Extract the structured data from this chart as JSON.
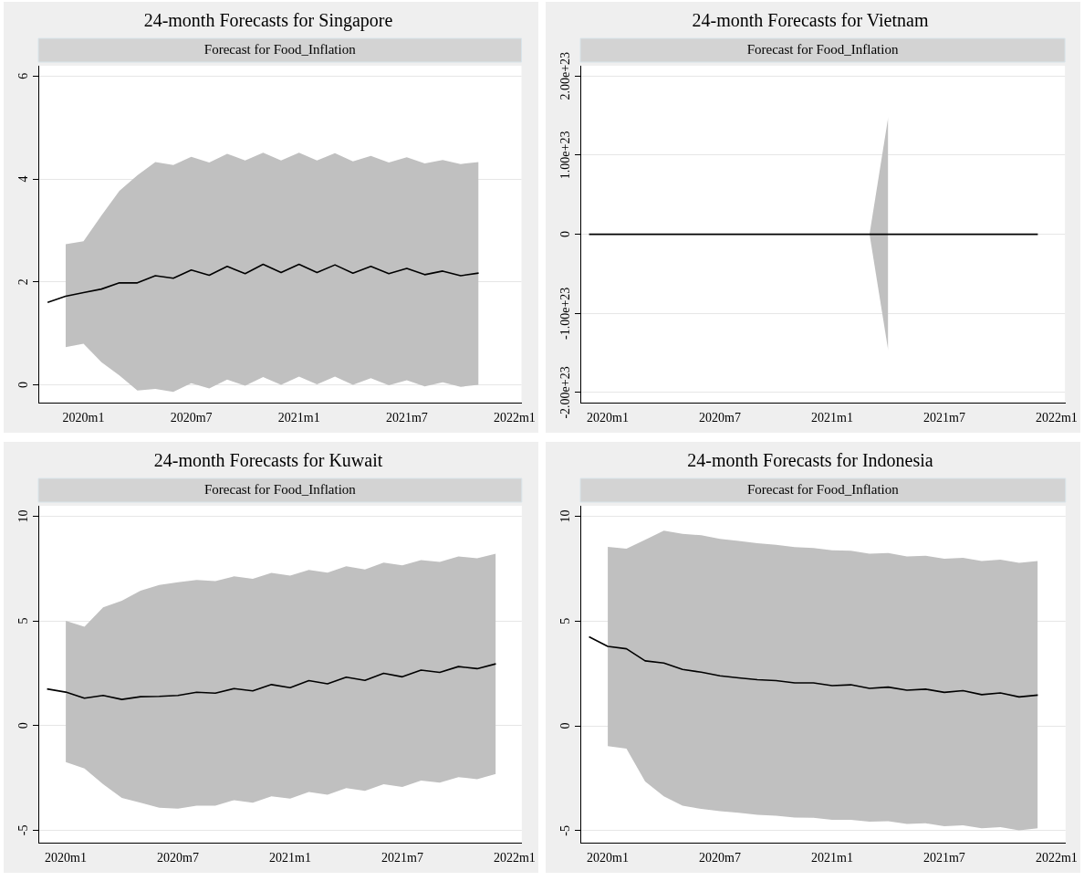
{
  "chart_data": [
    {
      "type": "line",
      "title": "24-month Forecasts for Singapore",
      "subtitle": "Forecast for Food_Inflation",
      "grid": "y",
      "legend": false,
      "x": [
        "2019-11",
        "2019-12",
        "2020-01",
        "2020-02",
        "2020-03",
        "2020-04",
        "2020-05",
        "2020-06",
        "2020-07",
        "2020-08",
        "2020-09",
        "2020-10",
        "2020-11",
        "2020-12",
        "2021-01",
        "2021-02",
        "2021-03",
        "2021-04",
        "2021-05",
        "2021-06",
        "2021-07",
        "2021-08",
        "2021-09",
        "2021-10",
        "2021-11"
      ],
      "xlim": [
        "2019-10-16",
        "2022-01-13"
      ],
      "xticks": [
        {
          "value": "2020-01",
          "label": "2020m1"
        },
        {
          "value": "2020-07",
          "label": "2020m7"
        },
        {
          "value": "2021-01",
          "label": "2021m1"
        },
        {
          "value": "2021-07",
          "label": "2021m7"
        },
        {
          "value": "2022-01",
          "label": "2022m1"
        }
      ],
      "ylim": [
        -0.35,
        6.2
      ],
      "yticks": [
        0,
        2,
        4,
        6
      ],
      "series": [
        {
          "color": "#000000",
          "values": [
            1.6,
            1.72,
            1.79,
            1.86,
            1.98,
            1.98,
            2.12,
            2.07,
            2.23,
            2.13,
            2.3,
            2.16,
            2.34,
            2.18,
            2.34,
            2.18,
            2.33,
            2.17,
            2.3,
            2.16,
            2.26,
            2.14,
            2.21,
            2.12,
            2.17
          ],
          "upper": [
            null,
            2.73,
            2.79,
            3.29,
            3.77,
            4.07,
            4.33,
            4.27,
            4.43,
            4.32,
            4.49,
            4.36,
            4.51,
            4.36,
            4.51,
            4.36,
            4.5,
            4.34,
            4.45,
            4.32,
            4.42,
            4.3,
            4.37,
            4.29,
            4.33
          ],
          "lower": [
            null,
            0.73,
            0.8,
            0.44,
            0.18,
            -0.11,
            -0.08,
            -0.14,
            0.03,
            -0.07,
            0.1,
            -0.02,
            0.15,
            0,
            0.16,
            0.01,
            0.16,
            0,
            0.13,
            -0.01,
            0.09,
            -0.03,
            0.05,
            -0.04,
            0
          ]
        }
      ]
    },
    {
      "type": "line",
      "title": "24-month Forecasts for Vietnam",
      "subtitle": "Forecast for Food_Inflation",
      "grid": "y",
      "legend": false,
      "x": [
        "2019-12",
        "2020-01",
        "2020-02",
        "2020-03",
        "2020-04",
        "2020-05",
        "2020-06",
        "2020-07",
        "2020-08",
        "2020-09",
        "2020-10",
        "2020-11",
        "2020-12",
        "2021-01",
        "2021-02",
        "2021-03",
        "2021-04",
        "2021-05",
        "2021-06",
        "2021-07",
        "2021-08",
        "2021-09",
        "2021-10",
        "2021-11",
        "2021-12"
      ],
      "xlim": [
        "2019-11-17",
        "2022-01-15"
      ],
      "xticks": [
        {
          "value": "2020-01",
          "label": "2020m1"
        },
        {
          "value": "2020-07",
          "label": "2020m7"
        },
        {
          "value": "2021-01",
          "label": "2021m1"
        },
        {
          "value": "2021-07",
          "label": "2021m7"
        },
        {
          "value": "2022-01",
          "label": "2022m1"
        }
      ],
      "ylim": [
        -2.13e+23,
        2.13e+23
      ],
      "yticks": [
        {
          "value": -2e+23,
          "label": "-2.00e+23"
        },
        {
          "value": -1e+23,
          "label": "-1.00e+23"
        },
        0,
        {
          "value": 1e+23,
          "label": "1.00e+23"
        },
        {
          "value": 2e+23,
          "label": "2.00e+23"
        }
      ],
      "series": [
        {
          "color": "#000000",
          "values": [
            0,
            0,
            0,
            0,
            0,
            0,
            0,
            0,
            0,
            0,
            0,
            0,
            0,
            0,
            0,
            0,
            0,
            0,
            0,
            0,
            0,
            0,
            0,
            0,
            0
          ],
          "upper": [
            null,
            null,
            null,
            null,
            null,
            null,
            null,
            null,
            null,
            null,
            null,
            null,
            null,
            null,
            null,
            0,
            1.48e+23,
            null,
            null,
            null,
            null,
            null,
            null,
            null,
            null
          ],
          "lower": [
            null,
            null,
            null,
            null,
            null,
            null,
            null,
            null,
            null,
            null,
            null,
            null,
            null,
            null,
            null,
            0,
            -1.47e+23,
            null,
            null,
            null,
            null,
            null,
            null,
            null,
            null
          ]
        }
      ]
    },
    {
      "type": "line",
      "title": "24-month Forecasts for Kuwait",
      "subtitle": "Forecast for Food_Inflation",
      "grid": "y",
      "legend": false,
      "x": [
        "2019-12",
        "2020-01",
        "2020-02",
        "2020-03",
        "2020-04",
        "2020-05",
        "2020-06",
        "2020-07",
        "2020-08",
        "2020-09",
        "2020-10",
        "2020-11",
        "2020-12",
        "2021-01",
        "2021-02",
        "2021-03",
        "2021-04",
        "2021-05",
        "2021-06",
        "2021-07",
        "2021-08",
        "2021-09",
        "2021-10",
        "2021-11",
        "2021-12"
      ],
      "xlim": [
        "2019-11-17",
        "2022-01-13"
      ],
      "xticks": [
        {
          "value": "2020-01",
          "label": "2020m1"
        },
        {
          "value": "2020-07",
          "label": "2020m7"
        },
        {
          "value": "2021-01",
          "label": "2021m1"
        },
        {
          "value": "2021-07",
          "label": "2021m7"
        },
        {
          "value": "2022-01",
          "label": "2022m1"
        }
      ],
      "ylim": [
        -5.6,
        10.5
      ],
      "yticks": [
        -5,
        0,
        5,
        10
      ],
      "series": [
        {
          "color": "#000000",
          "values": [
            1.75,
            1.6,
            1.31,
            1.44,
            1.25,
            1.38,
            1.4,
            1.44,
            1.59,
            1.55,
            1.77,
            1.66,
            1.96,
            1.81,
            2.15,
            2.0,
            2.31,
            2.16,
            2.5,
            2.33,
            2.65,
            2.54,
            2.82,
            2.72,
            2.95
          ],
          "upper": [
            null,
            5.0,
            4.72,
            5.65,
            5.97,
            6.44,
            6.72,
            6.85,
            6.96,
            6.9,
            7.13,
            7.01,
            7.29,
            7.16,
            7.44,
            7.31,
            7.61,
            7.46,
            7.78,
            7.65,
            7.91,
            7.82,
            8.08,
            7.99,
            8.21
          ],
          "lower": [
            null,
            -1.74,
            -2.05,
            -2.8,
            -3.45,
            -3.68,
            -3.92,
            -3.97,
            -3.82,
            -3.82,
            -3.56,
            -3.68,
            -3.38,
            -3.49,
            -3.17,
            -3.3,
            -2.99,
            -3.12,
            -2.8,
            -2.93,
            -2.63,
            -2.72,
            -2.46,
            -2.56,
            -2.31
          ]
        }
      ]
    },
    {
      "type": "line",
      "title": "24-month Forecasts for Indonesia",
      "subtitle": "Forecast for Food_Inflation",
      "grid": "y",
      "legend": false,
      "x": [
        "2019-12",
        "2020-01",
        "2020-02",
        "2020-03",
        "2020-04",
        "2020-05",
        "2020-06",
        "2020-07",
        "2020-08",
        "2020-09",
        "2020-10",
        "2020-11",
        "2020-12",
        "2021-01",
        "2021-02",
        "2021-03",
        "2021-04",
        "2021-05",
        "2021-06",
        "2021-07",
        "2021-08",
        "2021-09",
        "2021-10",
        "2021-11",
        "2021-12"
      ],
      "xlim": [
        "2019-11-17",
        "2022-01-16"
      ],
      "xticks": [
        {
          "value": "2020-01",
          "label": "2020m1"
        },
        {
          "value": "2020-07",
          "label": "2020m7"
        },
        {
          "value": "2021-01",
          "label": "2021m1"
        },
        {
          "value": "2021-07",
          "label": "2021m7"
        },
        {
          "value": "2022-01",
          "label": "2022m1"
        }
      ],
      "ylim": [
        -5.58,
        10.5
      ],
      "yticks": [
        -5,
        0,
        5,
        10
      ],
      "series": [
        {
          "color": "#000000",
          "values": [
            4.25,
            3.79,
            3.68,
            3.1,
            3.0,
            2.69,
            2.56,
            2.39,
            2.29,
            2.2,
            2.16,
            2.05,
            2.05,
            1.92,
            1.96,
            1.79,
            1.85,
            1.7,
            1.75,
            1.6,
            1.68,
            1.49,
            1.57,
            1.38,
            1.47
          ],
          "upper": [
            null,
            8.54,
            8.45,
            8.88,
            9.31,
            9.16,
            9.09,
            8.92,
            8.82,
            8.71,
            8.64,
            8.53,
            8.49,
            8.38,
            8.36,
            8.21,
            8.25,
            8.08,
            8.12,
            7.97,
            8.02,
            7.87,
            7.93,
            7.78,
            7.87
          ],
          "lower": [
            null,
            -0.97,
            -1.08,
            -2.65,
            -3.36,
            -3.81,
            -3.96,
            -4.07,
            -4.14,
            -4.24,
            -4.29,
            -4.37,
            -4.38,
            -4.48,
            -4.48,
            -4.57,
            -4.55,
            -4.68,
            -4.65,
            -4.79,
            -4.74,
            -4.89,
            -4.83,
            -4.98,
            -4.89
          ]
        }
      ]
    }
  ]
}
